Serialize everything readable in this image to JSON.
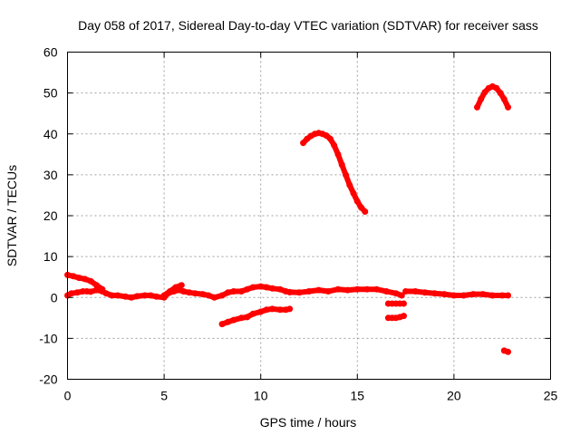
{
  "chart_data": {
    "type": "scatter",
    "title": "Day 058 of 2017, Sidereal Day-to-day VTEC variation (SDTVAR) for receiver sass",
    "xlabel": "GPS time / hours",
    "ylabel": "SDTVAR / TECUs",
    "xlim": [
      0,
      25
    ],
    "ylim": [
      -20,
      60
    ],
    "xticks": [
      0,
      5,
      10,
      15,
      20,
      25
    ],
    "yticks": [
      -20,
      -10,
      0,
      10,
      20,
      30,
      40,
      50,
      60
    ],
    "grid": true,
    "series_color": "#ff0000",
    "series": [
      {
        "name": "segment-1",
        "x": [
          0,
          0.2,
          0.5,
          0.8,
          1.0,
          1.2,
          1.5,
          1.8,
          2.0,
          2.3,
          2.6,
          3.0,
          3.3,
          3.6,
          4.0,
          4.3,
          4.6,
          5.0,
          5.2,
          5.5,
          5.8,
          6.0,
          6.3,
          6.6,
          7.0,
          7.3,
          7.6,
          8.0,
          8.3,
          8.6,
          9.0,
          9.3,
          9.6,
          10.0,
          10.3,
          10.6,
          11.0,
          11.3,
          11.5
        ],
        "y": [
          0.5,
          1,
          1.2,
          1.5,
          1.5,
          1.4,
          1.8,
          1.5,
          1.0,
          0.5,
          0.5,
          0.2,
          0.0,
          0.3,
          0.5,
          0.5,
          0.2,
          0.0,
          1.0,
          1.5,
          1.8,
          1.5,
          1.2,
          1.0,
          0.8,
          0.5,
          0.0,
          0.5,
          1.2,
          1.5,
          1.5,
          2.0,
          2.5,
          2.7,
          2.5,
          2.2,
          2.0,
          1.5,
          1.3
        ]
      },
      {
        "name": "segment-2",
        "x": [
          0,
          0.3,
          0.6,
          0.9,
          1.2,
          1.5,
          1.8
        ],
        "y": [
          5.5,
          5.2,
          4.8,
          4.5,
          4.0,
          3.0,
          2.0
        ]
      },
      {
        "name": "segment-3",
        "x": [
          5.0,
          5.3,
          5.6,
          5.9
        ],
        "y": [
          0.5,
          1.5,
          2.5,
          3.0
        ]
      },
      {
        "name": "segment-4",
        "x": [
          8.0,
          8.3,
          8.6,
          9.0,
          9.3,
          9.6,
          10.0,
          10.3,
          10.6,
          11.0,
          11.3,
          11.5
        ],
        "y": [
          -6.5,
          -6.0,
          -5.5,
          -5.0,
          -4.8,
          -4.0,
          -3.5,
          -3.0,
          -2.8,
          -3.0,
          -3.0,
          -2.8
        ]
      },
      {
        "name": "segment-5",
        "x": [
          11.5,
          12.0,
          12.5,
          13.0,
          13.5,
          14.0,
          14.5,
          15.0,
          15.5,
          16.0,
          16.5,
          17.0,
          17.3
        ],
        "y": [
          1.3,
          1.2,
          1.5,
          1.8,
          1.5,
          2.0,
          1.8,
          2.0,
          2.0,
          2.0,
          1.5,
          1.0,
          0.5
        ]
      },
      {
        "name": "segment-6",
        "x": [
          16.6,
          16.8,
          17.0,
          17.2,
          17.4
        ],
        "y": [
          -1.5,
          -1.5,
          -1.5,
          -1.5,
          -1.5
        ]
      },
      {
        "name": "segment-7",
        "x": [
          16.6,
          16.8,
          17.0,
          17.2,
          17.4
        ],
        "y": [
          -5.0,
          -5.0,
          -5.0,
          -4.8,
          -4.5
        ]
      },
      {
        "name": "segment-8",
        "x": [
          17.5,
          18.0,
          18.5,
          19.0,
          19.5,
          20.0,
          20.5,
          21.0,
          21.5,
          22.0,
          22.5,
          22.8
        ],
        "y": [
          1.5,
          1.5,
          1.2,
          1.0,
          0.8,
          0.5,
          0.5,
          0.8,
          0.8,
          0.5,
          0.5,
          0.5
        ]
      },
      {
        "name": "segment-9",
        "x": [
          12.2,
          12.4,
          12.6,
          12.8,
          13.0,
          13.2,
          13.4,
          13.6,
          13.8,
          14.0,
          14.2,
          14.4,
          14.6,
          14.8,
          15.0,
          15.2,
          15.4
        ],
        "y": [
          37.8,
          38.8,
          39.5,
          40.0,
          40.2,
          40.0,
          39.6,
          38.8,
          37.2,
          35.0,
          32.5,
          30.0,
          27.5,
          25.5,
          23.5,
          22.0,
          21.0
        ]
      },
      {
        "name": "segment-10",
        "x": [
          21.2,
          21.4,
          21.6,
          21.8,
          22.0,
          22.2,
          22.4,
          22.6,
          22.8
        ],
        "y": [
          46.5,
          48.5,
          50.2,
          51.2,
          51.6,
          51.2,
          50.0,
          48.5,
          46.5
        ]
      },
      {
        "name": "segment-11",
        "x": [
          22.6,
          22.8
        ],
        "y": [
          -13.0,
          -13.3
        ]
      }
    ]
  }
}
